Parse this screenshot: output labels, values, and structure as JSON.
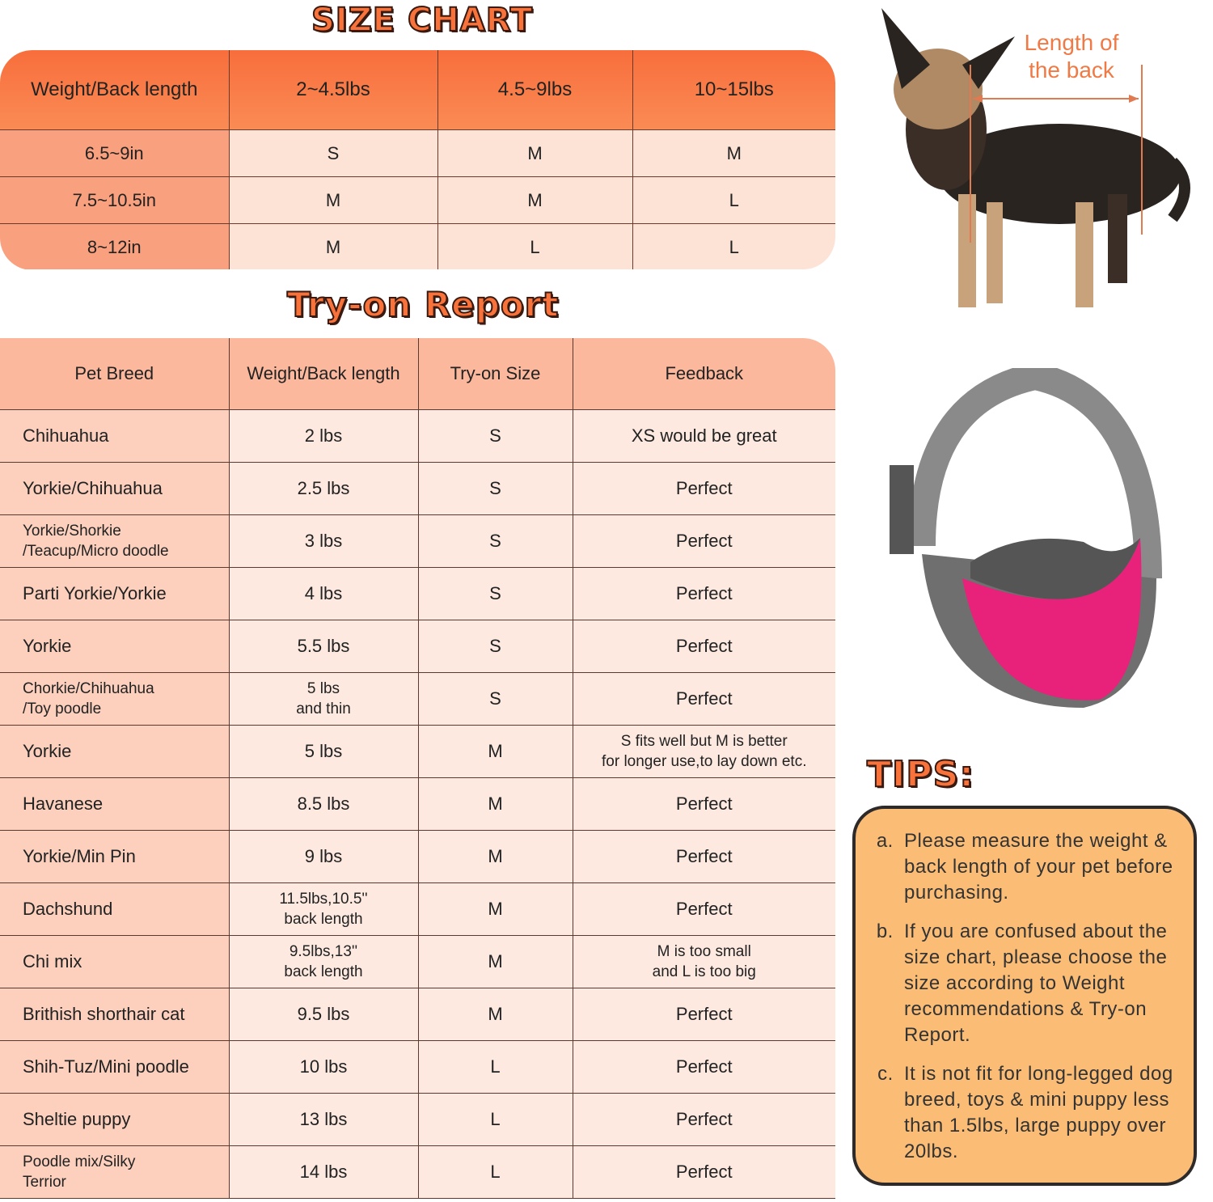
{
  "size_chart": {
    "title": "SIZE CHART",
    "header": [
      "Weight/Back length",
      "2~4.5lbs",
      "4.5~9lbs",
      "10~15lbs"
    ],
    "rows": [
      [
        "6.5~9in",
        "S",
        "M",
        "M"
      ],
      [
        "7.5~10.5in",
        "M",
        "M",
        "L"
      ],
      [
        "8~12in",
        "M",
        "L",
        "L"
      ]
    ]
  },
  "dog_image": {
    "label": "Length of\nthe back",
    "label_line1": "Length of",
    "label_line2": "the back",
    "accent": "#f07a45"
  },
  "try_on": {
    "title": "Try-on Report",
    "header": [
      "Pet Breed",
      "Weight/Back length",
      "Try-on Size",
      "Feedback"
    ],
    "rows": [
      [
        "Chihuahua",
        "2 lbs",
        "S",
        "XS would be great"
      ],
      [
        "Yorkie/Chihuahua",
        "2.5 lbs",
        "S",
        "Perfect"
      ],
      [
        "Yorkie/Shorkie\n/Teacup/Micro doodle",
        "3 lbs",
        "S",
        "Perfect"
      ],
      [
        "Parti Yorkie/Yorkie",
        "4 lbs",
        "S",
        "Perfect"
      ],
      [
        "Yorkie",
        "5.5 lbs",
        "S",
        "Perfect"
      ],
      [
        "Chorkie/Chihuahua\n/Toy poodle",
        "5 lbs\nand thin",
        "S",
        "Perfect"
      ],
      [
        "Yorkie",
        "5 lbs",
        "M",
        "S fits well but M is better\nfor longer use,to lay down etc."
      ],
      [
        "Havanese",
        "8.5 lbs",
        "M",
        "Perfect"
      ],
      [
        "Yorkie/Min Pin",
        "9 lbs",
        "M",
        "Perfect"
      ],
      [
        "Dachshund",
        "11.5lbs,10.5''\nback length",
        "M",
        "Perfect"
      ],
      [
        "Chi mix",
        "9.5lbs,13''\nback length",
        "M",
        "M is too small\nand L is too big"
      ],
      [
        "Brithish shorthair cat",
        "9.5 lbs",
        "M",
        "Perfect"
      ],
      [
        "Shih-Tuz/Mini poodle",
        "10 lbs",
        "L",
        "Perfect"
      ],
      [
        "Sheltie puppy",
        "13 lbs",
        "L",
        "Perfect"
      ],
      [
        "Poodle mix/Silky\n Terrior",
        "14 lbs",
        "L",
        "Perfect"
      ]
    ]
  },
  "tips": {
    "title": "TIPS:",
    "items": [
      "Please measure the weight & back length of your pet before purchasing.",
      "If you are confused about the size chart, please choose the size according to Weight recommendations & Try-on Report.",
      "It is not fit for long-legged dog breed, toys & mini puppy less than 1.5lbs, large puppy over 20lbs."
    ]
  },
  "colors": {
    "header_orange": "#f86e3c",
    "bag_pink": "#e8217a",
    "bag_gray": "#6e6e6e",
    "tips_bg": "#fbbd76"
  }
}
